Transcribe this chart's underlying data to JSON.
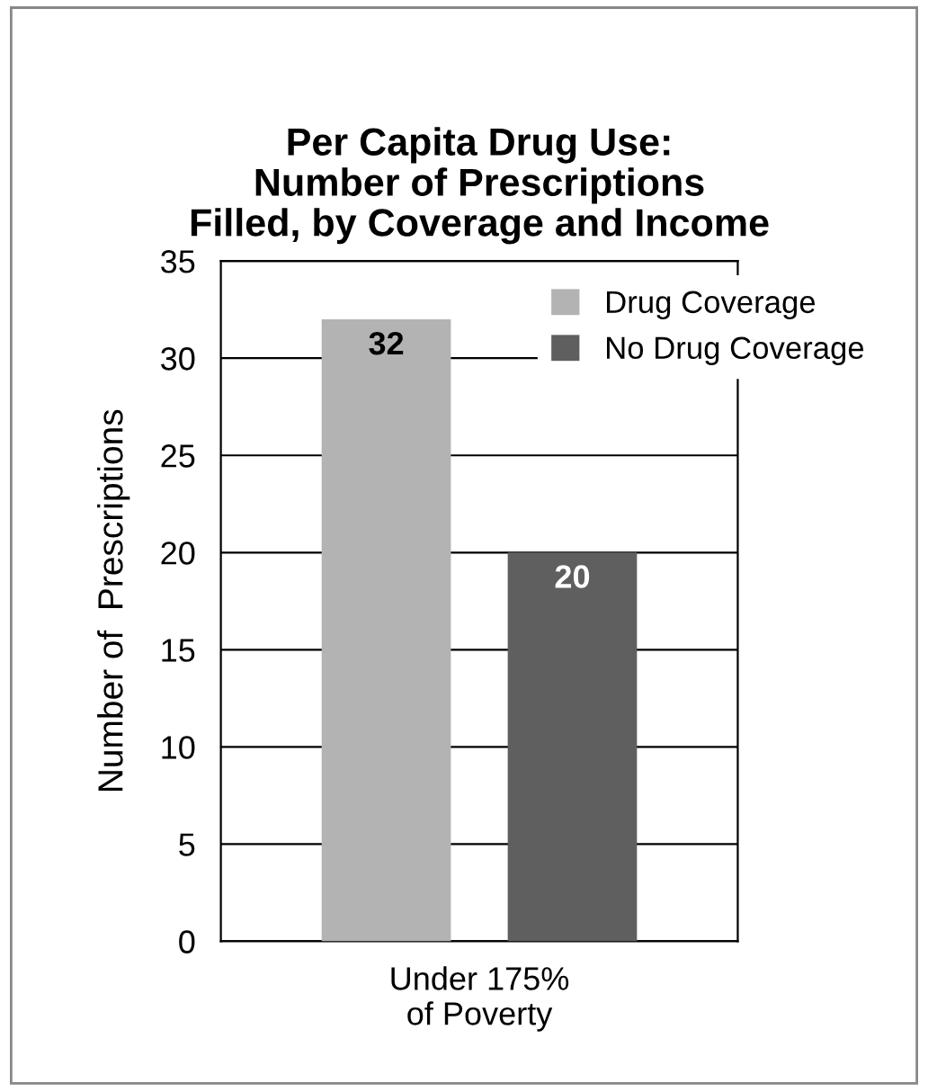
{
  "chart_data": {
    "type": "bar",
    "title": "Per Capita Drug Use:\nNumber of Prescriptions\nFilled, by Coverage and Income",
    "ylabel": "Number of  Prescriptions",
    "categories": [
      "Under 175%\nof Poverty"
    ],
    "series": [
      {
        "name": "Drug Coverage",
        "color": "#b3b3b3",
        "values": [
          32
        ]
      },
      {
        "name": "No Drug Coverage",
        "color": "#5f5f5f",
        "values": [
          20
        ]
      }
    ],
    "ylim": [
      0,
      35
    ],
    "yticks": [
      0,
      5,
      10,
      15,
      20,
      25,
      30,
      35
    ],
    "grid": "y",
    "legend": "top right",
    "data_labels": true
  }
}
